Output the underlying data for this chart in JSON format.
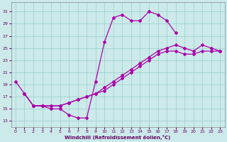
{
  "xlabel": "Windchill (Refroidissement éolien,°C)",
  "bg_color": "#cceaea",
  "line_color": "#aa00aa",
  "marker": "D",
  "marker_size": 2.0,
  "line_width": 0.9,
  "xlim": [
    -0.5,
    23.5
  ],
  "ylim": [
    12,
    32.5
  ],
  "xticks": [
    0,
    1,
    2,
    3,
    4,
    5,
    6,
    7,
    8,
    9,
    10,
    11,
    12,
    13,
    14,
    15,
    16,
    17,
    18,
    19,
    20,
    21,
    22,
    23
  ],
  "yticks": [
    13,
    15,
    17,
    19,
    21,
    23,
    25,
    27,
    29,
    31
  ],
  "grid_color": "#99cccc",
  "x_curve": [
    0,
    1,
    2,
    3,
    4,
    5,
    6,
    7,
    8,
    9,
    10,
    11,
    12,
    13,
    14,
    15,
    16,
    17,
    18
  ],
  "y_curve": [
    19.5,
    17.5,
    15.5,
    15.5,
    15.0,
    15.0,
    14.0,
    13.5,
    13.5,
    19.5,
    26.0,
    30.0,
    30.5,
    29.5,
    29.5,
    31.0,
    30.5,
    29.5,
    27.5
  ],
  "x_line1": [
    1,
    2,
    3,
    4,
    5,
    6,
    7,
    8,
    9,
    10,
    11,
    12,
    13,
    14,
    15,
    16,
    17,
    18,
    19,
    20,
    21,
    22,
    23
  ],
  "y_line1": [
    17.5,
    15.5,
    15.5,
    15.5,
    15.5,
    16.0,
    16.5,
    17.0,
    17.5,
    18.5,
    19.5,
    20.5,
    21.5,
    22.5,
    23.5,
    24.5,
    25.0,
    25.5,
    25.0,
    24.5,
    25.5,
    25.0,
    24.5
  ],
  "x_line2": [
    1,
    2,
    3,
    4,
    5,
    6,
    7,
    8,
    9,
    10,
    11,
    12,
    13,
    14,
    15,
    16,
    17,
    18,
    19,
    20,
    21,
    22,
    23
  ],
  "y_line2": [
    17.5,
    15.5,
    15.5,
    15.5,
    15.5,
    16.0,
    16.5,
    17.0,
    17.5,
    18.0,
    19.0,
    20.0,
    21.0,
    22.0,
    23.0,
    24.0,
    24.5,
    24.5,
    24.0,
    24.0,
    24.5,
    24.5,
    24.5
  ]
}
